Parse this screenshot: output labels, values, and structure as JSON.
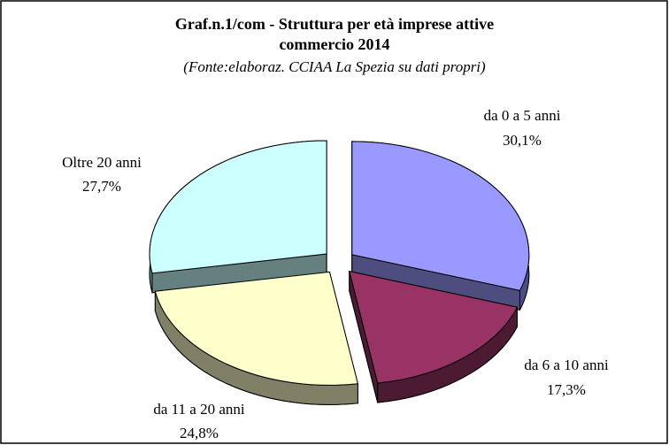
{
  "chart_data": {
    "type": "pie",
    "title": [
      "Graf.n.1/com - Struttura per età imprese attive",
      "commercio 2014"
    ],
    "subtitle": "(Fonte:elaboraz. CCIAA La Spezia su dati propri)",
    "categories": [
      "da 0 a 5 anni",
      "da 6 a 10 anni",
      "da 11 a 20 anni",
      "Oltre 20 anni"
    ],
    "values": [
      30.1,
      17.3,
      24.8,
      27.7
    ],
    "value_labels": [
      "30,1%",
      "17,3%",
      "24,8%",
      "27,7%"
    ],
    "colors": [
      "#9999ff",
      "#993366",
      "#ffffcc",
      "#ccffff"
    ]
  }
}
